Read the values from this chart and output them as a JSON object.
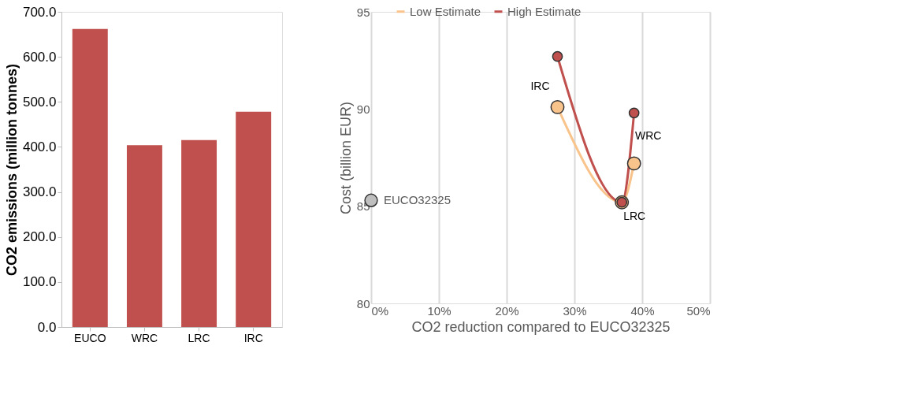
{
  "chart_data": [
    {
      "type": "bar",
      "ylabel": "CO2 emissions (million tonnes)",
      "categories": [
        "EUCO",
        "WRC",
        "LRC",
        "IRC"
      ],
      "values": [
        662,
        404,
        415,
        478
      ],
      "color": "#c0504d",
      "ylim": [
        0,
        700
      ],
      "yticks": [
        {
          "value": 0,
          "label": "0.0"
        },
        {
          "value": 100,
          "label": "100.0"
        },
        {
          "value": 200,
          "label": "200.0"
        },
        {
          "value": 300,
          "label": "300.0"
        },
        {
          "value": 400,
          "label": "400.0"
        },
        {
          "value": 500,
          "label": "500.0"
        },
        {
          "value": 600,
          "label": "600.0"
        },
        {
          "value": 700,
          "label": "700.0"
        }
      ],
      "grid": false
    },
    {
      "type": "line",
      "xlabel": "CO2 reduction compared to EUCO32325",
      "ylabel": "Cost (billion EUR)",
      "marker": "circle",
      "legend": "top",
      "grid": "x",
      "xlim": [
        0,
        0.5
      ],
      "xticks": [
        {
          "value": 0,
          "label": "0%"
        },
        {
          "value": 0.1,
          "label": "10%"
        },
        {
          "value": 0.2,
          "label": "20%"
        },
        {
          "value": 0.3,
          "label": "30%"
        },
        {
          "value": 0.4,
          "label": "40%"
        },
        {
          "value": 0.5,
          "label": "50%"
        }
      ],
      "ylim": [
        80,
        95
      ],
      "yticks": [
        80,
        85,
        90,
        95
      ],
      "series": [
        {
          "name": "Low Estimate",
          "color": "#f9c48b",
          "x": [
            0.275,
            0.37,
            0.388
          ],
          "values": [
            90.1,
            85.2,
            87.2
          ]
        },
        {
          "name": "High Estimate",
          "color": "#c0504d",
          "x": [
            0.275,
            0.37,
            0.388
          ],
          "values": [
            92.7,
            85.2,
            89.8
          ]
        },
        {
          "name": "EUCO32325",
          "type": "scatter",
          "color": "#bfbfbf",
          "x": [
            0.0
          ],
          "values": [
            85.3
          ]
        }
      ],
      "annotations": [
        {
          "text": "IRC",
          "x": 0.275,
          "y": 92.7
        },
        {
          "text": "WRC",
          "x": 0.388,
          "y": 89.8
        },
        {
          "text": "LRC",
          "x": 0.37,
          "y": 85.2
        }
      ]
    }
  ]
}
